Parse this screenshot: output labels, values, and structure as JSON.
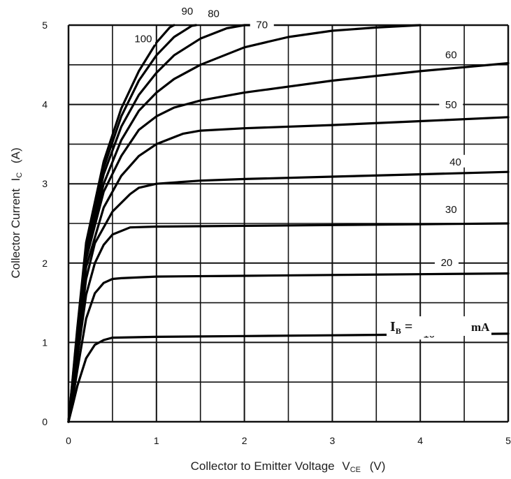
{
  "chart_data": {
    "type": "line",
    "xlabel": "Collector to Emitter Voltage",
    "xlabel_symbol": "V",
    "xlabel_subscript": "CE",
    "xlabel_unit": "(V)",
    "ylabel": "Collector Current",
    "ylabel_symbol": "I",
    "ylabel_subscript": "C",
    "ylabel_unit": "(A)",
    "xlim": [
      0,
      5
    ],
    "ylim": [
      0,
      5
    ],
    "xticks": [
      "0",
      "1",
      "2",
      "3",
      "4",
      "5"
    ],
    "yticks": [
      "0",
      "1",
      "2",
      "3",
      "4",
      "5"
    ],
    "grid": true,
    "parameter_symbol": "I",
    "parameter_subscript": "B",
    "parameter_equals": "=",
    "parameter_unit": "mA",
    "series": [
      {
        "name": "10",
        "x": [
          0,
          0.05,
          0.1,
          0.2,
          0.3,
          0.4,
          0.5,
          1,
          2,
          3,
          4,
          5
        ],
        "y": [
          0,
          0.22,
          0.45,
          0.8,
          0.97,
          1.03,
          1.06,
          1.07,
          1.08,
          1.09,
          1.1,
          1.11
        ]
      },
      {
        "name": "20",
        "x": [
          0,
          0.05,
          0.1,
          0.2,
          0.3,
          0.4,
          0.5,
          0.6,
          1,
          2,
          3,
          4,
          5
        ],
        "y": [
          0,
          0.3,
          0.65,
          1.3,
          1.62,
          1.75,
          1.8,
          1.81,
          1.83,
          1.84,
          1.85,
          1.86,
          1.87
        ]
      },
      {
        "name": "30",
        "x": [
          0,
          0.05,
          0.1,
          0.2,
          0.3,
          0.4,
          0.5,
          0.7,
          1,
          2,
          3,
          4,
          5
        ],
        "y": [
          0,
          0.35,
          0.8,
          1.6,
          2.0,
          2.23,
          2.36,
          2.45,
          2.46,
          2.47,
          2.48,
          2.49,
          2.5
        ]
      },
      {
        "name": "40",
        "x": [
          0,
          0.05,
          0.1,
          0.2,
          0.3,
          0.5,
          0.7,
          0.8,
          1,
          1.5,
          2,
          3,
          4,
          5
        ],
        "y": [
          0,
          0.4,
          0.9,
          1.8,
          2.25,
          2.65,
          2.87,
          2.95,
          3.0,
          3.04,
          3.06,
          3.09,
          3.12,
          3.15
        ]
      },
      {
        "name": "50",
        "x": [
          0,
          0.05,
          0.1,
          0.2,
          0.4,
          0.6,
          0.8,
          1,
          1.3,
          1.5,
          2,
          3,
          4,
          5
        ],
        "y": [
          0,
          0.45,
          1.0,
          1.95,
          2.7,
          3.1,
          3.35,
          3.5,
          3.63,
          3.67,
          3.7,
          3.74,
          3.79,
          3.84
        ]
      },
      {
        "name": "60",
        "x": [
          0,
          0.05,
          0.1,
          0.2,
          0.4,
          0.6,
          0.8,
          1,
          1.2,
          1.5,
          2,
          3,
          4,
          5
        ],
        "y": [
          0,
          0.5,
          1.05,
          2.05,
          2.9,
          3.35,
          3.68,
          3.85,
          3.96,
          4.05,
          4.15,
          4.3,
          4.42,
          4.52
        ]
      },
      {
        "name": "70",
        "x": [
          0,
          0.05,
          0.1,
          0.2,
          0.4,
          0.6,
          0.8,
          1,
          1.2,
          1.5,
          2,
          2.5,
          3,
          3.5,
          4
        ],
        "y": [
          0,
          0.52,
          1.1,
          2.12,
          3.0,
          3.55,
          3.92,
          4.15,
          4.32,
          4.5,
          4.72,
          4.85,
          4.93,
          4.97,
          5.0
        ]
      },
      {
        "name": "80",
        "x": [
          0,
          0.05,
          0.1,
          0.2,
          0.4,
          0.6,
          0.8,
          1,
          1.2,
          1.5,
          1.8,
          2.0,
          2.1
        ],
        "y": [
          0,
          0.55,
          1.12,
          2.18,
          3.12,
          3.72,
          4.12,
          4.4,
          4.62,
          4.83,
          4.96,
          5.0,
          5.0
        ]
      },
      {
        "name": "90",
        "x": [
          0,
          0.05,
          0.1,
          0.2,
          0.4,
          0.6,
          0.8,
          1,
          1.2,
          1.4,
          1.45
        ],
        "y": [
          0,
          0.56,
          1.15,
          2.22,
          3.2,
          3.85,
          4.3,
          4.62,
          4.85,
          4.99,
          5.0
        ]
      },
      {
        "name": "100",
        "x": [
          0,
          0.05,
          0.1,
          0.2,
          0.4,
          0.6,
          0.8,
          1,
          1.15,
          1.2
        ],
        "y": [
          0,
          0.58,
          1.18,
          2.26,
          3.28,
          3.95,
          4.42,
          4.78,
          4.97,
          5.0
        ]
      }
    ]
  }
}
